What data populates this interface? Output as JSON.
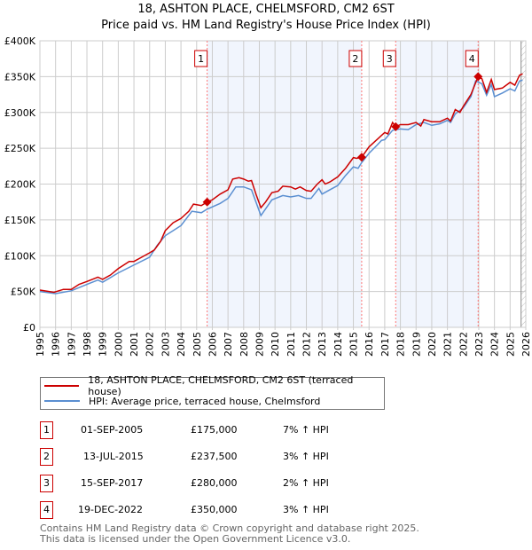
{
  "chart_data": {
    "type": "line",
    "title": "18, ASHTON PLACE, CHELMSFORD, CM2 6ST",
    "subtitle": "Price paid vs. HM Land Registry's House Price Index (HPI)",
    "xlim": [
      1995,
      2026
    ],
    "ylim": [
      0,
      400000
    ],
    "x_ticks": [
      "1995",
      "1996",
      "1997",
      "1998",
      "1999",
      "2000",
      "2001",
      "2002",
      "2003",
      "2004",
      "2005",
      "2006",
      "2007",
      "2008",
      "2009",
      "2010",
      "2011",
      "2012",
      "2013",
      "2014",
      "2015",
      "2016",
      "2017",
      "2018",
      "2019",
      "2020",
      "2021",
      "2022",
      "2023",
      "2024",
      "2025",
      "2026"
    ],
    "y_ticks": [
      {
        "v": 0,
        "label": "£0"
      },
      {
        "v": 50000,
        "label": "£50K"
      },
      {
        "v": 100000,
        "label": "£100K"
      },
      {
        "v": 150000,
        "label": "£150K"
      },
      {
        "v": 200000,
        "label": "£200K"
      },
      {
        "v": 250000,
        "label": "£250K"
      },
      {
        "v": 300000,
        "label": "£300K"
      },
      {
        "v": 350000,
        "label": "£350K"
      },
      {
        "v": 400000,
        "label": "£400K"
      }
    ],
    "grid": true,
    "series": [
      {
        "name": "18, ASHTON PLACE, CHELMSFORD, CM2 6ST (terraced house)",
        "color": "#cc0000",
        "points": [
          [
            1995,
            52
          ],
          [
            1995.9,
            49
          ],
          [
            1996.5,
            53
          ],
          [
            1997,
            53
          ],
          [
            1997.5,
            60
          ],
          [
            1998,
            64
          ],
          [
            1998.7,
            70
          ],
          [
            1999,
            67
          ],
          [
            1999.5,
            73
          ],
          [
            2000,
            82
          ],
          [
            2000.7,
            92
          ],
          [
            2001,
            92
          ],
          [
            2001.5,
            98
          ],
          [
            2002,
            104
          ],
          [
            2002.3,
            108
          ],
          [
            2002.7,
            120
          ],
          [
            2003,
            135
          ],
          [
            2003.5,
            146
          ],
          [
            2004,
            152
          ],
          [
            2004.5,
            162
          ],
          [
            2004.8,
            172
          ],
          [
            2005.3,
            170
          ],
          [
            2005.67,
            175
          ],
          [
            2006,
            178
          ],
          [
            2006.5,
            186
          ],
          [
            2007,
            192
          ],
          [
            2007.3,
            207
          ],
          [
            2007.7,
            209
          ],
          [
            2008,
            207
          ],
          [
            2008.3,
            204
          ],
          [
            2008.5,
            205
          ],
          [
            2008.8,
            185
          ],
          [
            2009.1,
            167
          ],
          [
            2009.4,
            175
          ],
          [
            2009.8,
            188
          ],
          [
            2010.2,
            190
          ],
          [
            2010.5,
            197
          ],
          [
            2011,
            196
          ],
          [
            2011.3,
            193
          ],
          [
            2011.6,
            196
          ],
          [
            2012,
            191
          ],
          [
            2012.3,
            190
          ],
          [
            2012.7,
            200
          ],
          [
            2013,
            206
          ],
          [
            2013.2,
            200
          ],
          [
            2013.5,
            203
          ],
          [
            2014,
            210
          ],
          [
            2014.5,
            222
          ],
          [
            2015,
            237
          ],
          [
            2015.2,
            236
          ],
          [
            2015.53,
            237.5
          ],
          [
            2016,
            252
          ],
          [
            2016.5,
            262
          ],
          [
            2016.8,
            268
          ],
          [
            2017,
            272
          ],
          [
            2017.2,
            270
          ],
          [
            2017.5,
            286
          ],
          [
            2017.7,
            280
          ],
          [
            2018,
            283
          ],
          [
            2018.5,
            283
          ],
          [
            2019,
            286
          ],
          [
            2019.3,
            281
          ],
          [
            2019.5,
            290
          ],
          [
            2020,
            287
          ],
          [
            2020.5,
            287
          ],
          [
            2021,
            292
          ],
          [
            2021.2,
            288
          ],
          [
            2021.5,
            304
          ],
          [
            2021.8,
            300
          ],
          [
            2022,
            308
          ],
          [
            2022.5,
            325
          ],
          [
            2022.96,
            350
          ],
          [
            2023.2,
            347
          ],
          [
            2023.5,
            328
          ],
          [
            2023.8,
            346
          ],
          [
            2024,
            332
          ],
          [
            2024.5,
            334
          ],
          [
            2025,
            342
          ],
          [
            2025.3,
            338
          ],
          [
            2025.6,
            352
          ],
          [
            2025.8,
            354
          ]
        ]
      },
      {
        "name": "HPI: Average price, terraced house, Chelmsford",
        "color": "#5b8fd1",
        "points": [
          [
            1995,
            50
          ],
          [
            1996,
            47
          ],
          [
            1997,
            51
          ],
          [
            1998,
            60
          ],
          [
            1998.7,
            66
          ],
          [
            1999,
            63
          ],
          [
            2000,
            76
          ],
          [
            2001,
            87
          ],
          [
            2002,
            98
          ],
          [
            2002.5,
            115
          ],
          [
            2003,
            128
          ],
          [
            2004,
            142
          ],
          [
            2004.7,
            162
          ],
          [
            2005.3,
            160
          ],
          [
            2005.67,
            165
          ],
          [
            2006.5,
            173
          ],
          [
            2007,
            180
          ],
          [
            2007.5,
            196
          ],
          [
            2008,
            196
          ],
          [
            2008.5,
            192
          ],
          [
            2009.1,
            156
          ],
          [
            2009.8,
            178
          ],
          [
            2010.5,
            184
          ],
          [
            2011,
            182
          ],
          [
            2011.5,
            184
          ],
          [
            2012,
            180
          ],
          [
            2012.3,
            180
          ],
          [
            2012.8,
            194
          ],
          [
            2013,
            186
          ],
          [
            2013.5,
            192
          ],
          [
            2014,
            198
          ],
          [
            2014.5,
            212
          ],
          [
            2015,
            224
          ],
          [
            2015.3,
            222
          ],
          [
            2015.53,
            230
          ],
          [
            2016,
            243
          ],
          [
            2016.5,
            254
          ],
          [
            2016.8,
            261
          ],
          [
            2017,
            262
          ],
          [
            2017.5,
            275
          ],
          [
            2018,
            277
          ],
          [
            2018.5,
            276
          ],
          [
            2019,
            283
          ],
          [
            2019.5,
            286
          ],
          [
            2020,
            282
          ],
          [
            2020.5,
            284
          ],
          [
            2021,
            289
          ],
          [
            2021.2,
            286
          ],
          [
            2021.5,
            298
          ],
          [
            2022,
            306
          ],
          [
            2022.5,
            322
          ],
          [
            2022.8,
            344
          ],
          [
            2023.2,
            340
          ],
          [
            2023.5,
            324
          ],
          [
            2023.8,
            339
          ],
          [
            2024,
            322
          ],
          [
            2024.5,
            327
          ],
          [
            2025,
            333
          ],
          [
            2025.3,
            330
          ],
          [
            2025.6,
            344
          ],
          [
            2025.8,
            345
          ]
        ]
      }
    ],
    "sales": [
      {
        "n": "1",
        "x": 2005.67,
        "price": 175,
        "date": "01-SEP-2005",
        "price_label": "£175,000",
        "hpi": "7% ↑ HPI"
      },
      {
        "n": "2",
        "x": 2015.53,
        "price": 237.5,
        "date": "13-JUL-2015",
        "price_label": "£237,500",
        "hpi": "3% ↑ HPI"
      },
      {
        "n": "3",
        "x": 2017.7,
        "price": 280,
        "date": "15-SEP-2017",
        "price_label": "£280,000",
        "hpi": "2% ↑ HPI"
      },
      {
        "n": "4",
        "x": 2022.96,
        "price": 350,
        "date": "19-DEC-2022",
        "price_label": "£350,000",
        "hpi": "3% ↑ HPI"
      }
    ],
    "shaded_ranges": [
      [
        2005.67,
        2015.53
      ],
      [
        2017.7,
        2022.96
      ]
    ],
    "forecast_from": 2025.7,
    "legend_placement": "bottom"
  },
  "footer": {
    "line1": "Contains HM Land Registry data © Crown copyright and database right 2025.",
    "line2": "This data is licensed under the Open Government Licence v3.0."
  }
}
